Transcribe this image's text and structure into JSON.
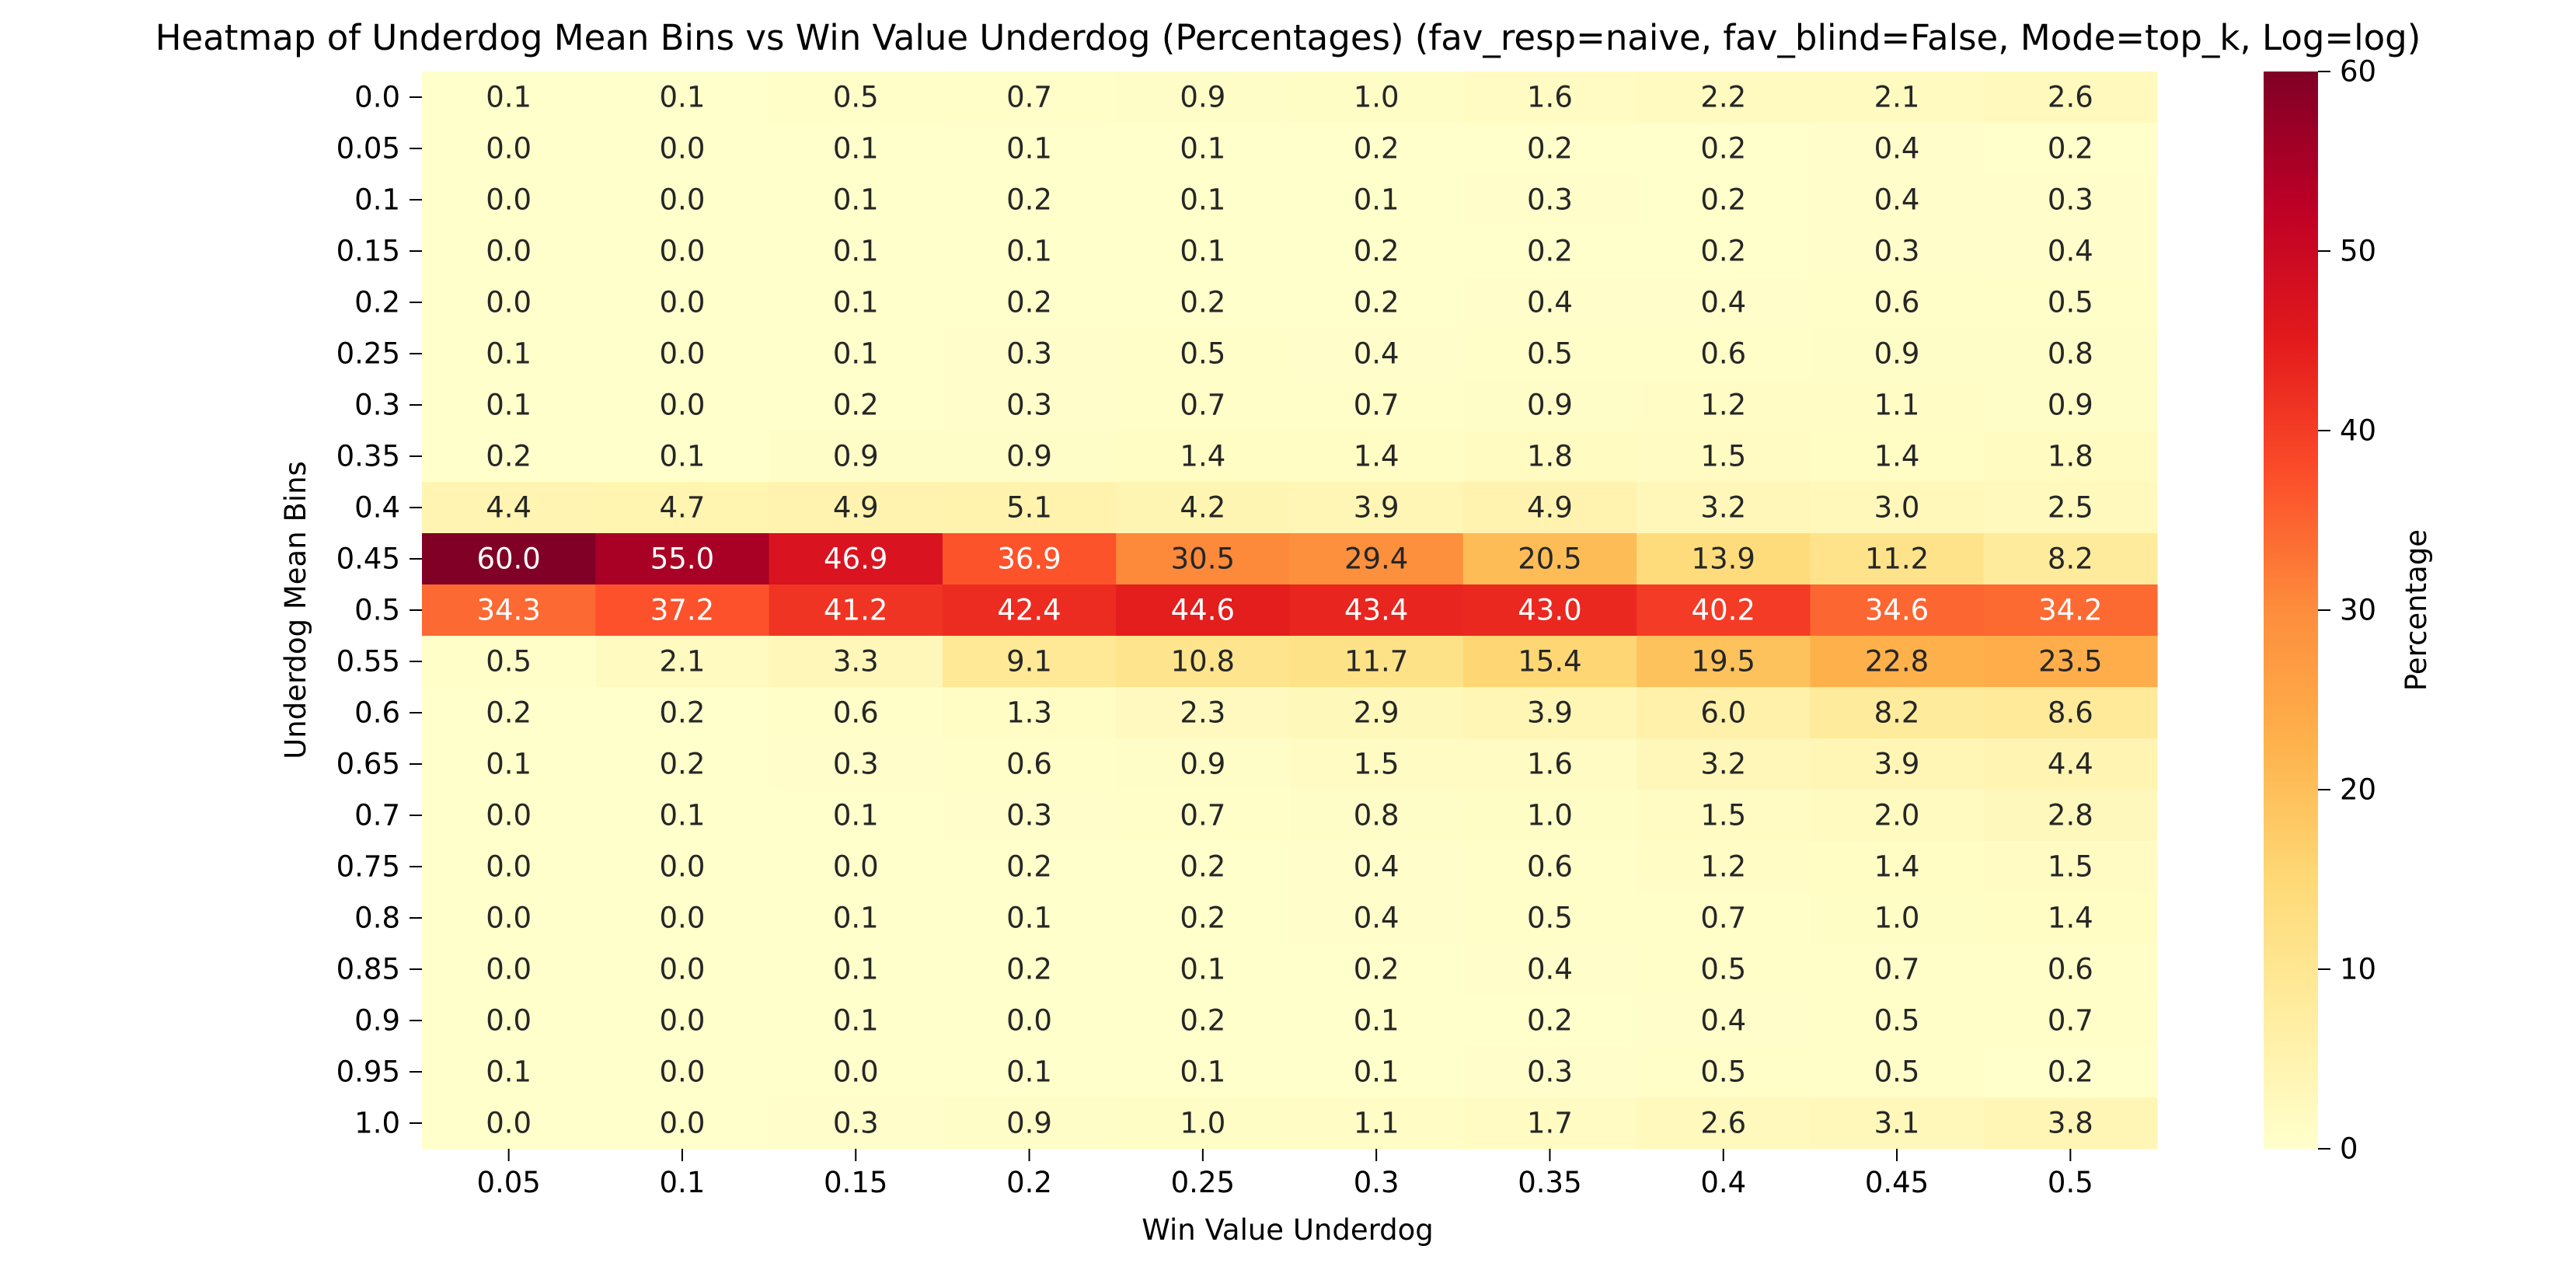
{
  "chart_data": {
    "type": "heatmap",
    "title": "Heatmap of Underdog Mean Bins vs Win Value Underdog (Percentages)  (fav_resp=naive, fav_blind=False, Mode=top_k, Log=log)",
    "xlabel": "Win Value Underdog",
    "ylabel": "Underdog Mean Bins",
    "x_categories": [
      "0.05",
      "0.1",
      "0.15",
      "0.2",
      "0.25",
      "0.3",
      "0.35",
      "0.4",
      "0.45",
      "0.5"
    ],
    "y_categories": [
      "0.0",
      "0.05",
      "0.1",
      "0.15",
      "0.2",
      "0.25",
      "0.3",
      "0.35",
      "0.4",
      "0.45",
      "0.5",
      "0.55",
      "0.6",
      "0.65",
      "0.7",
      "0.75",
      "0.8",
      "0.85",
      "0.9",
      "0.95",
      "1.0"
    ],
    "values": [
      [
        0.1,
        0.1,
        0.5,
        0.7,
        0.9,
        1.0,
        1.6,
        2.2,
        2.1,
        2.6
      ],
      [
        0.0,
        0.0,
        0.1,
        0.1,
        0.1,
        0.2,
        0.2,
        0.2,
        0.4,
        0.2
      ],
      [
        0.0,
        0.0,
        0.1,
        0.2,
        0.1,
        0.1,
        0.3,
        0.2,
        0.4,
        0.3
      ],
      [
        0.0,
        0.0,
        0.1,
        0.1,
        0.1,
        0.2,
        0.2,
        0.2,
        0.3,
        0.4
      ],
      [
        0.0,
        0.0,
        0.1,
        0.2,
        0.2,
        0.2,
        0.4,
        0.4,
        0.6,
        0.5
      ],
      [
        0.1,
        0.0,
        0.1,
        0.3,
        0.5,
        0.4,
        0.5,
        0.6,
        0.9,
        0.8
      ],
      [
        0.1,
        0.0,
        0.2,
        0.3,
        0.7,
        0.7,
        0.9,
        1.2,
        1.1,
        0.9
      ],
      [
        0.2,
        0.1,
        0.9,
        0.9,
        1.4,
        1.4,
        1.8,
        1.5,
        1.4,
        1.8
      ],
      [
        4.4,
        4.7,
        4.9,
        5.1,
        4.2,
        3.9,
        4.9,
        3.2,
        3.0,
        2.5
      ],
      [
        60.0,
        55.0,
        46.9,
        36.9,
        30.5,
        29.4,
        20.5,
        13.9,
        11.2,
        8.2
      ],
      [
        34.3,
        37.2,
        41.2,
        42.4,
        44.6,
        43.4,
        43.0,
        40.2,
        34.6,
        34.2
      ],
      [
        0.5,
        2.1,
        3.3,
        9.1,
        10.8,
        11.7,
        15.4,
        19.5,
        22.8,
        23.5
      ],
      [
        0.2,
        0.2,
        0.6,
        1.3,
        2.3,
        2.9,
        3.9,
        6.0,
        8.2,
        8.6
      ],
      [
        0.1,
        0.2,
        0.3,
        0.6,
        0.9,
        1.5,
        1.6,
        3.2,
        3.9,
        4.4
      ],
      [
        0.0,
        0.1,
        0.1,
        0.3,
        0.7,
        0.8,
        1.0,
        1.5,
        2.0,
        2.8
      ],
      [
        0.0,
        0.0,
        0.0,
        0.2,
        0.2,
        0.4,
        0.6,
        1.2,
        1.4,
        1.5
      ],
      [
        0.0,
        0.0,
        0.1,
        0.1,
        0.2,
        0.4,
        0.5,
        0.7,
        1.0,
        1.4
      ],
      [
        0.0,
        0.0,
        0.1,
        0.2,
        0.1,
        0.2,
        0.4,
        0.5,
        0.7,
        0.6
      ],
      [
        0.0,
        0.0,
        0.1,
        0.0,
        0.2,
        0.1,
        0.2,
        0.4,
        0.5,
        0.7
      ],
      [
        0.1,
        0.0,
        0.0,
        0.1,
        0.1,
        0.1,
        0.3,
        0.5,
        0.5,
        0.2
      ],
      [
        0.0,
        0.0,
        0.3,
        0.9,
        1.0,
        1.1,
        1.7,
        2.6,
        3.1,
        3.8
      ]
    ],
    "colorbar": {
      "label": "Percentage",
      "min": 0,
      "max": 60,
      "ticks": [
        0,
        10,
        20,
        30,
        40,
        50,
        60
      ],
      "colormap": "YlOrRd",
      "colors": [
        "#ffffcc",
        "#ffeda0",
        "#fed976",
        "#feb24c",
        "#fd8d3c",
        "#fc4e2a",
        "#e31a1c",
        "#bd0026",
        "#800026"
      ]
    },
    "grid": false
  }
}
